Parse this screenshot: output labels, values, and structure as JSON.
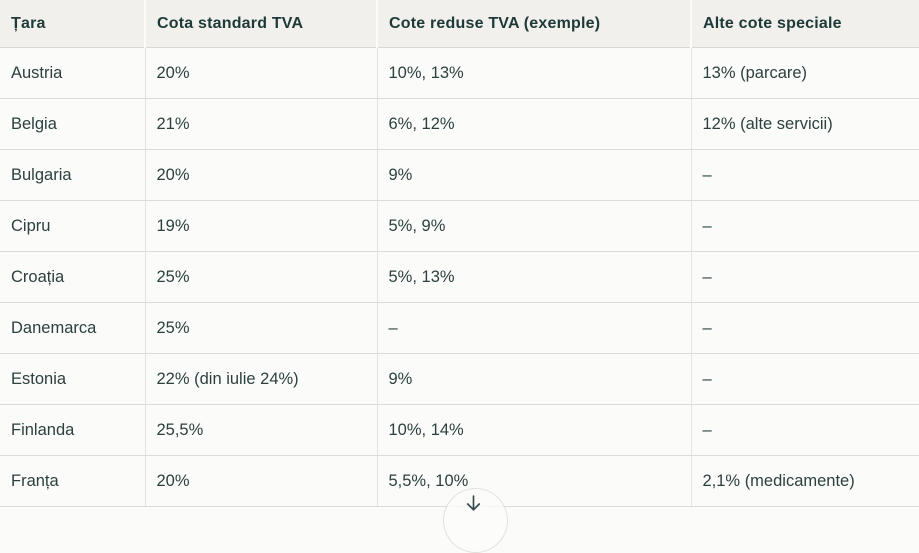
{
  "table": {
    "columns": [
      "Țara",
      "Cota standard TVA",
      "Cote reduse TVA (exemple)",
      "Alte cote speciale"
    ],
    "rows": [
      [
        "Austria",
        "20%",
        "10%, 13%",
        "13% (parcare)"
      ],
      [
        "Belgia",
        "21%",
        "6%, 12%",
        "12% (alte servicii)"
      ],
      [
        "Bulgaria",
        "20%",
        "9%",
        "–"
      ],
      [
        "Cipru",
        "19%",
        "5%, 9%",
        "–"
      ],
      [
        "Croația",
        "25%",
        "5%, 13%",
        "–"
      ],
      [
        "Danemarca",
        "25%",
        "–",
        "–"
      ],
      [
        "Estonia",
        "22% (din iulie 24%)",
        "9%",
        "–"
      ],
      [
        "Finlanda",
        "25,5%",
        "10%, 14%",
        "–"
      ],
      [
        "Franța",
        "20%",
        "5,5%, 10%",
        "2,1% (medicamente)"
      ]
    ]
  },
  "scroll_button": {
    "icon": "arrow-down"
  },
  "colors": {
    "header_bg": "#f1f0ec",
    "row_bg": "#fbfbf9",
    "header_text": "#1d3938",
    "body_text": "#2b403f",
    "row_border": "#dcdbd7",
    "column_border": "#e5e3df"
  }
}
